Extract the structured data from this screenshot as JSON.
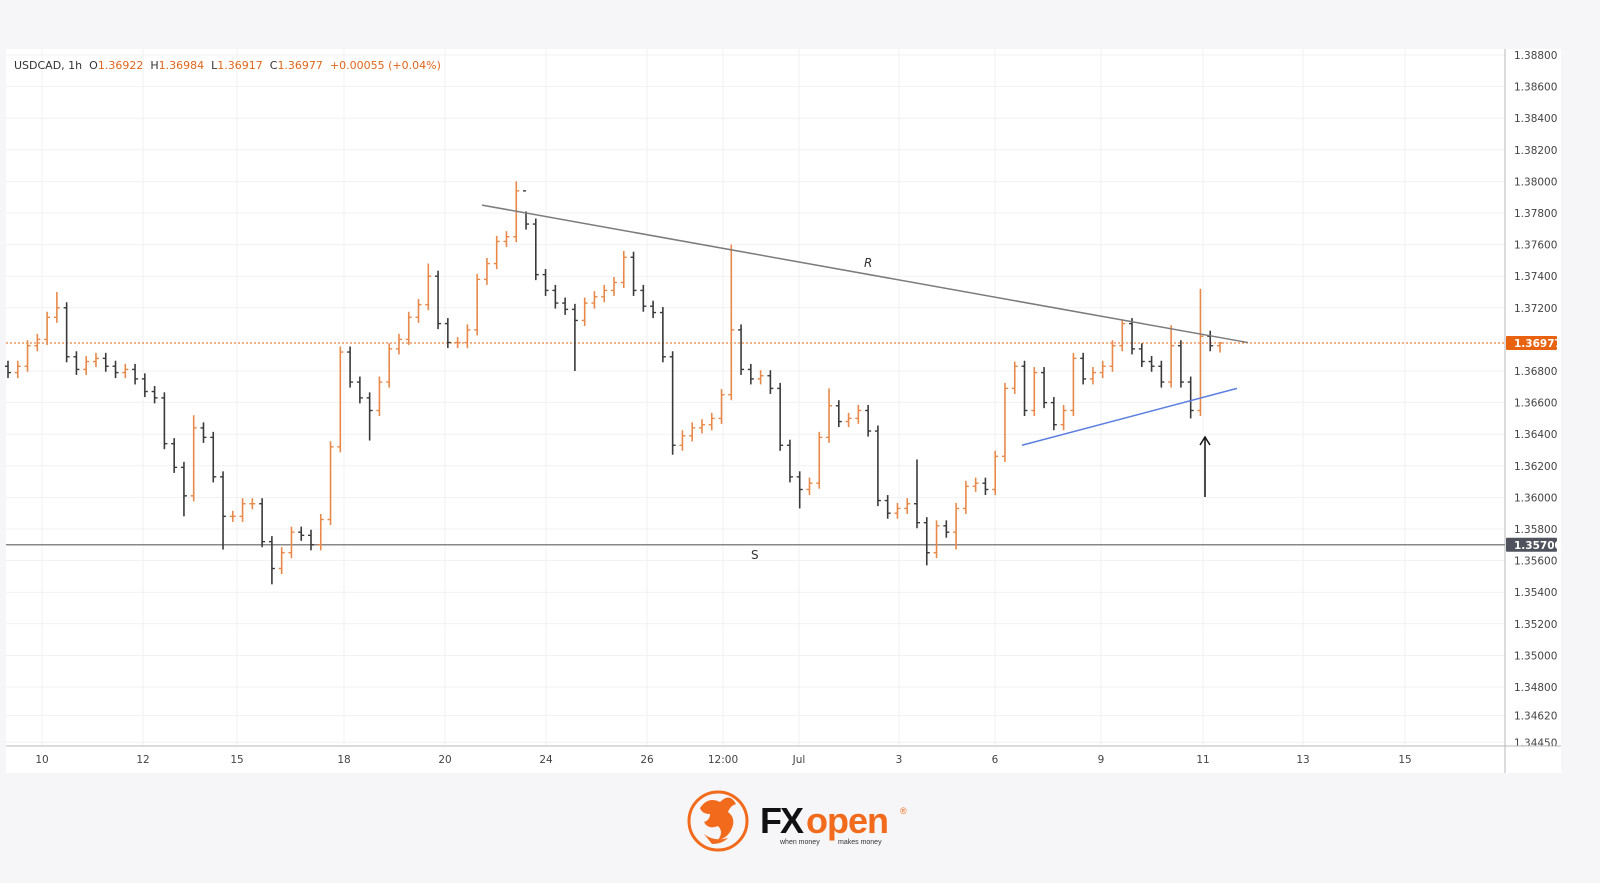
{
  "header": {
    "symbol": "USDCAD, 1h",
    "open_label": "O",
    "open": "1.36922",
    "high_label": "H",
    "high": "1.36984",
    "low_label": "L",
    "low": "1.36917",
    "close_label": "C",
    "close": "1.36977",
    "change": "+0.00055 (+0.04%)"
  },
  "colors": {
    "up": "#e8894a",
    "down": "#3a3a3a",
    "price_tag": "#e8620f",
    "support_tag": "#50535e",
    "resistance_line": "#7b7b7b",
    "uptrend_line": "#5b7fe0",
    "brand_orange": "#f26a1b"
  },
  "chart_data": {
    "type": "ohlc",
    "symbol": "USDCAD",
    "interval": "1h",
    "ylim": [
      1.3445,
      1.388
    ],
    "grid": true,
    "y_ticks": [
      "1.38800",
      "1.38600",
      "1.38400",
      "1.38200",
      "1.38000",
      "1.37800",
      "1.37600",
      "1.37400",
      "1.37200",
      "1.36800",
      "1.36600",
      "1.36400",
      "1.36200",
      "1.36000",
      "1.35800",
      "1.35600",
      "1.35400",
      "1.35200",
      "1.35000",
      "1.34800",
      "1.34620",
      "1.34450"
    ],
    "x_ticks": [
      "10",
      "12",
      "15",
      "18",
      "20",
      "24",
      "26",
      "12:00",
      "Jul",
      "3",
      "6",
      "9",
      "11",
      "13",
      "15"
    ],
    "first_open": 1.3683,
    "bars": [
      [
        1.3679,
        null,
        null
      ],
      [
        1.3683,
        null,
        null
      ],
      [
        1.3696,
        null,
        null
      ],
      [
        1.37,
        null,
        null
      ],
      [
        1.3714,
        null,
        null
      ],
      [
        1.372,
        1.373,
        null
      ],
      [
        1.3689,
        null,
        null
      ],
      [
        1.3681,
        null,
        null
      ],
      [
        1.3686,
        null,
        null
      ],
      [
        1.3688,
        null,
        null
      ],
      [
        1.3683,
        null,
        null
      ],
      [
        1.3679,
        null,
        null
      ],
      [
        1.3681,
        null,
        null
      ],
      [
        1.3675,
        null,
        null
      ],
      [
        1.3667,
        null,
        null
      ],
      [
        1.3663,
        null,
        null
      ],
      [
        1.3634,
        null,
        null
      ],
      [
        1.3619,
        null,
        null
      ],
      [
        1.3601,
        null,
        1.3588
      ],
      [
        1.3644,
        1.3652,
        null
      ],
      [
        1.3638,
        null,
        null
      ],
      [
        1.3613,
        null,
        null
      ],
      [
        1.3588,
        null,
        1.3567
      ],
      [
        1.3588,
        null,
        null
      ],
      [
        1.3596,
        null,
        null
      ],
      [
        1.3596,
        null,
        null
      ],
      [
        1.3572,
        null,
        null
      ],
      [
        1.3555,
        null,
        1.3545
      ],
      [
        1.3565,
        null,
        null
      ],
      [
        1.3578,
        null,
        null
      ],
      [
        1.3576,
        null,
        null
      ],
      [
        1.357,
        null,
        null
      ],
      [
        1.3586,
        null,
        null
      ],
      [
        1.3632,
        null,
        null
      ],
      [
        1.3692,
        null,
        null
      ],
      [
        1.3673,
        null,
        null
      ],
      [
        1.3663,
        null,
        null
      ],
      [
        1.3655,
        null,
        1.3636
      ],
      [
        1.3673,
        null,
        null
      ],
      [
        1.3694,
        null,
        null
      ],
      [
        1.37,
        null,
        null
      ],
      [
        1.3714,
        null,
        null
      ],
      [
        1.3722,
        null,
        null
      ],
      [
        1.374,
        1.3748,
        null
      ],
      [
        1.371,
        null,
        null
      ],
      [
        1.3698,
        null,
        null
      ],
      [
        1.3698,
        null,
        null
      ],
      [
        1.3706,
        null,
        null
      ],
      [
        1.3738,
        null,
        null
      ],
      [
        1.3748,
        null,
        null
      ],
      [
        1.3762,
        null,
        null
      ],
      [
        1.3765,
        null,
        null
      ],
      [
        1.3794,
        1.38,
        null
      ],
      [
        1.3773,
        1.3781,
        null
      ],
      [
        1.3741,
        null,
        null
      ],
      [
        1.3731,
        null,
        null
      ],
      [
        1.3723,
        null,
        null
      ],
      [
        1.3719,
        null,
        null
      ],
      [
        1.3712,
        null,
        1.368
      ],
      [
        1.3723,
        null,
        null
      ],
      [
        1.3727,
        null,
        null
      ],
      [
        1.3731,
        null,
        null
      ],
      [
        1.3736,
        null,
        null
      ],
      [
        1.3752,
        1.3756,
        null
      ],
      [
        1.3731,
        null,
        null
      ],
      [
        1.3721,
        null,
        null
      ],
      [
        1.3717,
        null,
        null
      ],
      [
        1.3689,
        null,
        null
      ],
      [
        1.3633,
        null,
        1.3627
      ],
      [
        1.3639,
        null,
        null
      ],
      [
        1.3644,
        null,
        null
      ],
      [
        1.3646,
        null,
        null
      ],
      [
        1.365,
        null,
        null
      ],
      [
        1.3665,
        null,
        null
      ],
      [
        1.3706,
        1.376,
        null
      ],
      [
        1.3681,
        null,
        null
      ],
      [
        1.3675,
        null,
        null
      ],
      [
        1.3677,
        null,
        null
      ],
      [
        1.3669,
        null,
        null
      ],
      [
        1.3633,
        null,
        null
      ],
      [
        1.3613,
        null,
        null
      ],
      [
        1.3605,
        null,
        1.3593
      ],
      [
        1.3609,
        null,
        null
      ],
      [
        1.3638,
        null,
        null
      ],
      [
        1.3658,
        1.3669,
        null
      ],
      [
        1.3648,
        null,
        null
      ],
      [
        1.365,
        null,
        null
      ],
      [
        1.3655,
        null,
        null
      ],
      [
        1.3642,
        null,
        null
      ],
      [
        1.3598,
        null,
        null
      ],
      [
        1.359,
        null,
        null
      ],
      [
        1.3593,
        null,
        null
      ],
      [
        1.3596,
        null,
        null
      ],
      [
        1.3584,
        1.3624,
        null
      ],
      [
        1.3565,
        null,
        1.3557
      ],
      [
        1.3582,
        null,
        null
      ],
      [
        1.3578,
        null,
        null
      ],
      [
        1.3593,
        null,
        1.3567
      ],
      [
        1.3607,
        null,
        null
      ],
      [
        1.3609,
        null,
        null
      ],
      [
        1.3605,
        null,
        null
      ],
      [
        1.3626,
        null,
        null
      ],
      [
        1.3669,
        null,
        null
      ],
      [
        1.3683,
        1.3686,
        null
      ],
      [
        1.3655,
        null,
        null
      ],
      [
        1.3679,
        null,
        null
      ],
      [
        1.366,
        null,
        null
      ],
      [
        1.3646,
        null,
        null
      ],
      [
        1.3655,
        null,
        null
      ],
      [
        1.3688,
        null,
        null
      ],
      [
        1.3675,
        null,
        null
      ],
      [
        1.3679,
        null,
        null
      ],
      [
        1.3683,
        null,
        null
      ],
      [
        1.3696,
        null,
        null
      ],
      [
        1.371,
        1.3712,
        null
      ],
      [
        1.3694,
        null,
        null
      ],
      [
        1.3686,
        null,
        null
      ],
      [
        1.3683,
        null,
        null
      ],
      [
        1.3673,
        null,
        null
      ],
      [
        1.3696,
        1.3709,
        null
      ],
      [
        1.3673,
        null,
        null
      ],
      [
        1.3655,
        null,
        1.365
      ],
      [
        1.3702,
        1.3732,
        null
      ],
      [
        1.3696,
        null,
        null
      ],
      [
        1.36977,
        1.36984,
        1.36917
      ]
    ],
    "last_price": "1.36977",
    "support_level": "1.35700",
    "annotations": {
      "resistance_label": "R",
      "support_label": "S",
      "resistance_line_prices": [
        1.3785,
        1.3698
      ],
      "uptrend_line_prices": [
        1.3633,
        1.3669
      ],
      "support_price": 1.357
    }
  },
  "footer": {
    "logo_fx": "FX",
    "logo_open": "open",
    "logo_registered": "®",
    "tagline_left": "when money",
    "tagline_right": "makes money"
  }
}
